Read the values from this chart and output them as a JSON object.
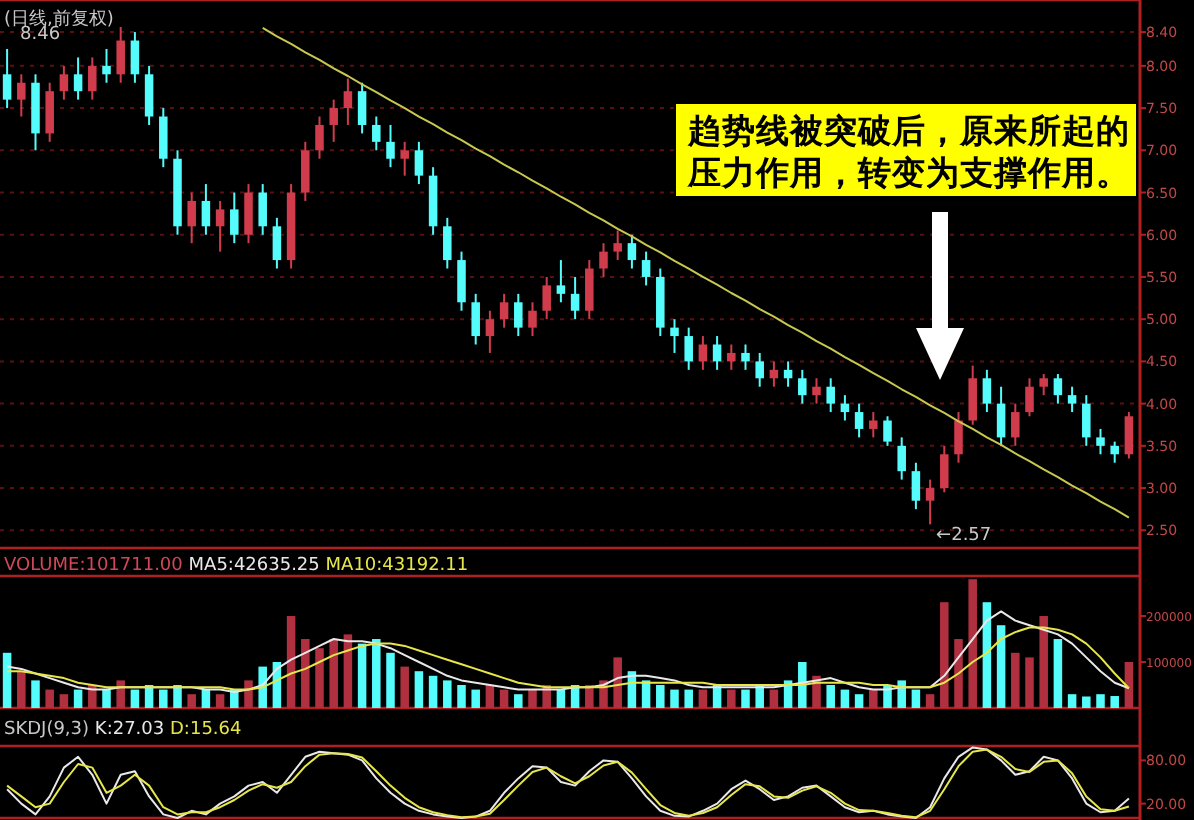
{
  "chart_data": [
    {
      "type": "candlestick",
      "title": "(日线,前复权)",
      "tick_labels": "y",
      "grid": "y",
      "categories": [
        null,
        null,
        null,
        null,
        null,
        null,
        null,
        null,
        null,
        null,
        null,
        null,
        null,
        null,
        null,
        null,
        null,
        null,
        null,
        null,
        null,
        null,
        null,
        null,
        null,
        null,
        null,
        null,
        null,
        null,
        null,
        null,
        null,
        null,
        null,
        null,
        null,
        null,
        null,
        null,
        null,
        null,
        null,
        null,
        null,
        null,
        null,
        null,
        null,
        null,
        null,
        null,
        null,
        null,
        null,
        null,
        null,
        null,
        null,
        null,
        null,
        null,
        null,
        null,
        null,
        null,
        null,
        null,
        null,
        null,
        null,
        null,
        null,
        null,
        null,
        null,
        null,
        null,
        null,
        null
      ],
      "ohlc": [
        [
          7.9,
          8.2,
          7.5,
          7.6
        ],
        [
          7.6,
          7.9,
          7.4,
          7.8
        ],
        [
          7.8,
          7.9,
          7.0,
          7.2
        ],
        [
          7.2,
          7.8,
          7.1,
          7.7
        ],
        [
          7.7,
          8.0,
          7.6,
          7.9
        ],
        [
          7.9,
          8.1,
          7.6,
          7.7
        ],
        [
          7.7,
          8.1,
          7.6,
          8.0
        ],
        [
          8.0,
          8.2,
          7.8,
          7.9
        ],
        [
          7.9,
          8.46,
          7.8,
          8.3
        ],
        [
          8.3,
          8.4,
          7.8,
          7.9
        ],
        [
          7.9,
          8.0,
          7.3,
          7.4
        ],
        [
          7.4,
          7.5,
          6.8,
          6.9
        ],
        [
          6.9,
          7.0,
          6.0,
          6.1
        ],
        [
          6.1,
          6.5,
          5.9,
          6.4
        ],
        [
          6.4,
          6.6,
          6.0,
          6.1
        ],
        [
          6.1,
          6.4,
          5.8,
          6.3
        ],
        [
          6.3,
          6.5,
          5.9,
          6.0
        ],
        [
          6.0,
          6.6,
          5.9,
          6.5
        ],
        [
          6.5,
          6.6,
          6.0,
          6.1
        ],
        [
          6.1,
          6.2,
          5.6,
          5.7
        ],
        [
          5.7,
          6.6,
          5.6,
          6.5
        ],
        [
          6.5,
          7.1,
          6.4,
          7.0
        ],
        [
          7.0,
          7.4,
          6.9,
          7.3
        ],
        [
          7.3,
          7.6,
          7.1,
          7.5
        ],
        [
          7.5,
          7.85,
          7.3,
          7.7
        ],
        [
          7.7,
          7.8,
          7.2,
          7.3
        ],
        [
          7.3,
          7.4,
          7.0,
          7.1
        ],
        [
          7.1,
          7.3,
          6.8,
          6.9
        ],
        [
          6.9,
          7.1,
          6.7,
          7.0
        ],
        [
          7.0,
          7.1,
          6.6,
          6.7
        ],
        [
          6.7,
          6.8,
          6.0,
          6.1
        ],
        [
          6.1,
          6.2,
          5.6,
          5.7
        ],
        [
          5.7,
          5.8,
          5.1,
          5.2
        ],
        [
          5.2,
          5.3,
          4.7,
          4.8
        ],
        [
          4.8,
          5.1,
          4.6,
          5.0
        ],
        [
          5.0,
          5.3,
          4.9,
          5.2
        ],
        [
          5.2,
          5.3,
          4.8,
          4.9
        ],
        [
          4.9,
          5.2,
          4.8,
          5.1
        ],
        [
          5.1,
          5.5,
          5.0,
          5.4
        ],
        [
          5.4,
          5.7,
          5.2,
          5.3
        ],
        [
          5.3,
          5.5,
          5.0,
          5.1
        ],
        [
          5.1,
          5.7,
          5.0,
          5.6
        ],
        [
          5.6,
          5.9,
          5.5,
          5.8
        ],
        [
          5.8,
          6.05,
          5.7,
          5.9
        ],
        [
          5.9,
          6.0,
          5.6,
          5.7
        ],
        [
          5.7,
          5.8,
          5.4,
          5.5
        ],
        [
          5.5,
          5.6,
          4.8,
          4.9
        ],
        [
          4.9,
          5.0,
          4.6,
          4.8
        ],
        [
          4.8,
          4.9,
          4.4,
          4.5
        ],
        [
          4.5,
          4.8,
          4.4,
          4.7
        ],
        [
          4.7,
          4.8,
          4.4,
          4.5
        ],
        [
          4.5,
          4.7,
          4.4,
          4.6
        ],
        [
          4.6,
          4.7,
          4.4,
          4.5
        ],
        [
          4.5,
          4.6,
          4.2,
          4.3
        ],
        [
          4.3,
          4.5,
          4.2,
          4.4
        ],
        [
          4.4,
          4.5,
          4.2,
          4.3
        ],
        [
          4.3,
          4.4,
          4.0,
          4.1
        ],
        [
          4.1,
          4.3,
          4.0,
          4.2
        ],
        [
          4.2,
          4.3,
          3.9,
          4.0
        ],
        [
          4.0,
          4.1,
          3.8,
          3.9
        ],
        [
          3.9,
          4.0,
          3.6,
          3.7
        ],
        [
          3.7,
          3.9,
          3.6,
          3.8
        ],
        [
          3.8,
          3.85,
          3.5,
          3.55
        ],
        [
          3.5,
          3.6,
          3.1,
          3.2
        ],
        [
          3.2,
          3.3,
          2.75,
          2.85
        ],
        [
          2.85,
          3.1,
          2.57,
          3.0
        ],
        [
          3.0,
          3.5,
          2.95,
          3.4
        ],
        [
          3.4,
          3.9,
          3.3,
          3.8
        ],
        [
          3.8,
          4.45,
          3.75,
          4.3
        ],
        [
          4.3,
          4.4,
          3.9,
          4.0
        ],
        [
          4.0,
          4.2,
          3.5,
          3.6
        ],
        [
          3.6,
          4.0,
          3.5,
          3.9
        ],
        [
          3.9,
          4.3,
          3.85,
          4.2
        ],
        [
          4.2,
          4.35,
          4.1,
          4.3
        ],
        [
          4.3,
          4.35,
          4.0,
          4.1
        ],
        [
          4.1,
          4.2,
          3.9,
          4.0
        ],
        [
          4.0,
          4.1,
          3.5,
          3.6
        ],
        [
          3.6,
          3.7,
          3.4,
          3.5
        ],
        [
          3.5,
          3.55,
          3.3,
          3.4
        ],
        [
          3.4,
          3.9,
          3.35,
          3.85
        ]
      ],
      "series": [
        {
          "type": "line",
          "color": "#c8c850",
          "values": [
            null,
            null,
            null,
            null,
            null,
            null,
            null,
            null,
            null,
            null,
            null,
            null,
            null,
            null,
            null,
            null,
            null,
            null,
            8.45,
            8.35,
            8.26,
            8.16,
            8.07,
            7.97,
            7.88,
            7.78,
            7.69,
            7.59,
            7.5,
            7.4,
            7.31,
            7.21,
            7.12,
            7.02,
            6.93,
            6.83,
            6.74,
            6.64,
            6.55,
            6.45,
            6.36,
            6.26,
            6.17,
            6.07,
            5.98,
            5.88,
            5.79,
            5.69,
            5.6,
            5.5,
            5.41,
            5.31,
            5.22,
            5.12,
            5.03,
            4.93,
            4.84,
            4.74,
            4.65,
            4.55,
            4.46,
            4.36,
            4.27,
            4.17,
            4.08,
            3.98,
            3.89,
            3.79,
            3.7,
            3.6,
            3.51,
            3.41,
            3.32,
            3.22,
            3.13,
            3.03,
            2.94,
            2.84,
            2.75,
            2.65
          ]
        }
      ],
      "ylim": [
        2.29,
        8.78
      ],
      "yticks": [
        {
          "value": 2.5,
          "label": "2.50"
        },
        {
          "value": 3,
          "label": "3.00"
        },
        {
          "value": 3.5,
          "label": "3.50"
        },
        {
          "value": 4,
          "label": "4.00"
        },
        {
          "value": 4.5,
          "label": "4.50"
        },
        {
          "value": 5,
          "label": "5.00"
        },
        {
          "value": 5.5,
          "label": "5.50"
        },
        {
          "value": 6,
          "label": "6.00"
        },
        {
          "value": 6.5,
          "label": "6.50"
        },
        {
          "value": 7,
          "label": "7.00"
        },
        {
          "value": 7.5,
          "label": "7.50"
        },
        {
          "value": 8,
          "label": "8.00"
        },
        {
          "value": 8.4,
          "label": "8.40"
        }
      ],
      "annotations": [
        "8.46",
        "←2.57",
        "趋势线被突破后，原来所起的压力作用，转变为支撑作用。"
      ]
    },
    {
      "type": "bar",
      "tick_labels": "y",
      "categories": [
        null,
        null,
        null,
        null,
        null,
        null,
        null,
        null,
        null,
        null,
        null,
        null,
        null,
        null,
        null,
        null,
        null,
        null,
        null,
        null,
        null,
        null,
        null,
        null,
        null,
        null,
        null,
        null,
        null,
        null,
        null,
        null,
        null,
        null,
        null,
        null,
        null,
        null,
        null,
        null,
        null,
        null,
        null,
        null,
        null,
        null,
        null,
        null,
        null,
        null,
        null,
        null,
        null,
        null,
        null,
        null,
        null,
        null,
        null,
        null,
        null,
        null,
        null,
        null,
        null,
        null,
        null,
        null,
        null,
        null,
        null,
        null,
        null,
        null,
        null,
        null,
        null,
        null,
        null,
        null
      ],
      "ylim": [
        0,
        287000
      ],
      "yticks": [
        100000,
        200000
      ],
      "series": [
        {
          "name": "VOLUME:101711.00",
          "color": "#d04858",
          "colors": [
            "#54fcfc",
            "#b03040",
            "#54fcfc",
            "#b03040",
            "#b03040",
            "#54fcfc",
            "#b03040",
            "#54fcfc",
            "#b03040",
            "#54fcfc",
            "#54fcfc",
            "#54fcfc",
            "#54fcfc",
            "#b03040",
            "#54fcfc",
            "#b03040",
            "#54fcfc",
            "#b03040",
            "#54fcfc",
            "#54fcfc",
            "#b03040",
            "#b03040",
            "#b03040",
            "#b03040",
            "#b03040",
            "#54fcfc",
            "#54fcfc",
            "#54fcfc",
            "#b03040",
            "#54fcfc",
            "#54fcfc",
            "#54fcfc",
            "#54fcfc",
            "#54fcfc",
            "#b03040",
            "#b03040",
            "#54fcfc",
            "#b03040",
            "#b03040",
            "#54fcfc",
            "#54fcfc",
            "#b03040",
            "#b03040",
            "#b03040",
            "#54fcfc",
            "#54fcfc",
            "#54fcfc",
            "#54fcfc",
            "#54fcfc",
            "#b03040",
            "#54fcfc",
            "#b03040",
            "#54fcfc",
            "#54fcfc",
            "#b03040",
            "#54fcfc",
            "#54fcfc",
            "#b03040",
            "#54fcfc",
            "#54fcfc",
            "#54fcfc",
            "#b03040",
            "#54fcfc",
            "#54fcfc",
            "#54fcfc",
            "#b03040",
            "#b03040",
            "#b03040",
            "#b03040",
            "#54fcfc",
            "#54fcfc",
            "#b03040",
            "#b03040",
            "#b03040",
            "#54fcfc",
            "#54fcfc",
            "#54fcfc",
            "#54fcfc",
            "#54fcfc",
            "#b03040"
          ],
          "values": [
            120000,
            80000,
            60000,
            40000,
            30000,
            40000,
            50000,
            40000,
            60000,
            40000,
            50000,
            40000,
            50000,
            30000,
            40000,
            30000,
            40000,
            60000,
            90000,
            100000,
            200000,
            150000,
            130000,
            150000,
            160000,
            140000,
            150000,
            120000,
            90000,
            80000,
            70000,
            60000,
            50000,
            40000,
            50000,
            40000,
            30000,
            40000,
            50000,
            40000,
            50000,
            50000,
            60000,
            110000,
            80000,
            60000,
            50000,
            40000,
            40000,
            40000,
            50000,
            40000,
            40000,
            50000,
            40000,
            60000,
            100000,
            70000,
            50000,
            40000,
            30000,
            40000,
            50000,
            60000,
            40000,
            30000,
            230000,
            150000,
            280000,
            230000,
            180000,
            120000,
            110000,
            200000,
            150000,
            30000,
            25000,
            30000,
            26000,
            100000
          ]
        },
        {
          "name": "MA5:42635.25",
          "type": "line",
          "color": "#e8e8e8",
          "values": [
            90000,
            85000,
            75000,
            65000,
            55000,
            45000,
            40000,
            40000,
            45000,
            45000,
            45000,
            45000,
            45000,
            45000,
            40000,
            40000,
            35000,
            40000,
            50000,
            85000,
            105000,
            120000,
            135000,
            150000,
            145000,
            145000,
            140000,
            130000,
            115000,
            100000,
            85000,
            70000,
            60000,
            55000,
            50000,
            45000,
            40000,
            40000,
            40000,
            40000,
            45000,
            45000,
            50000,
            65000,
            70000,
            70000,
            65000,
            60000,
            50000,
            45000,
            45000,
            45000,
            45000,
            45000,
            45000,
            50000,
            55000,
            60000,
            65000,
            55000,
            45000,
            40000,
            40000,
            45000,
            45000,
            45000,
            70000,
            110000,
            150000,
            190000,
            210000,
            190000,
            180000,
            170000,
            160000,
            140000,
            110000,
            80000,
            55000,
            43000
          ]
        },
        {
          "name": "MA10:43192.11",
          "type": "line",
          "color": "#e6e64b",
          "values": [
            80000,
            80000,
            75000,
            70000,
            65000,
            55000,
            50000,
            45000,
            45000,
            45000,
            45000,
            45000,
            45000,
            45000,
            45000,
            45000,
            40000,
            40000,
            45000,
            60000,
            75000,
            85000,
            100000,
            115000,
            125000,
            135000,
            140000,
            140000,
            135000,
            125000,
            115000,
            105000,
            95000,
            85000,
            75000,
            65000,
            55000,
            50000,
            45000,
            45000,
            45000,
            45000,
            45000,
            50000,
            55000,
            55000,
            55000,
            55000,
            55000,
            55000,
            50000,
            50000,
            50000,
            50000,
            50000,
            50000,
            50000,
            55000,
            55000,
            55000,
            55000,
            50000,
            50000,
            45000,
            45000,
            45000,
            55000,
            75000,
            100000,
            120000,
            150000,
            165000,
            175000,
            175000,
            170000,
            160000,
            140000,
            110000,
            75000,
            43000
          ]
        }
      ]
    },
    {
      "type": "line",
      "title": "SKDJ(9,3)",
      "tick_labels": "y",
      "categories": [
        null,
        null,
        null,
        null,
        null,
        null,
        null,
        null,
        null,
        null,
        null,
        null,
        null,
        null,
        null,
        null,
        null,
        null,
        null,
        null,
        null,
        null,
        null,
        null,
        null,
        null,
        null,
        null,
        null,
        null,
        null,
        null,
        null,
        null,
        null,
        null,
        null,
        null,
        null,
        null,
        null,
        null,
        null,
        null,
        null,
        null,
        null,
        null,
        null,
        null,
        null,
        null,
        null,
        null,
        null,
        null,
        null,
        null,
        null,
        null,
        null,
        null,
        null,
        null,
        null,
        null,
        null,
        null,
        null,
        null,
        null,
        null,
        null,
        null,
        null,
        null,
        null,
        null,
        null,
        null
      ],
      "ylim": [
        0,
        100
      ],
      "yticks": [
        {
          "value": 20,
          "label": "20.00"
        },
        {
          "value": 80,
          "label": "80.00"
        }
      ],
      "series": [
        {
          "name": "K:27.03",
          "color": "#e8e8e8",
          "values": [
            40,
            20,
            5,
            30,
            70,
            85,
            60,
            20,
            60,
            65,
            30,
            5,
            0,
            10,
            5,
            20,
            30,
            45,
            50,
            35,
            60,
            85,
            92,
            90,
            88,
            80,
            55,
            35,
            20,
            10,
            5,
            2,
            0,
            2,
            10,
            35,
            55,
            72,
            70,
            50,
            45,
            65,
            80,
            78,
            55,
            30,
            10,
            3,
            2,
            10,
            20,
            40,
            52,
            40,
            25,
            30,
            42,
            45,
            30,
            15,
            8,
            10,
            5,
            2,
            0,
            15,
            55,
            85,
            98,
            95,
            80,
            60,
            65,
            85,
            80,
            55,
            20,
            8,
            10,
            27
          ]
        },
        {
          "name": "D:15.64",
          "color": "#e6e64b",
          "values": [
            45,
            30,
            15,
            20,
            50,
            75,
            70,
            35,
            45,
            60,
            45,
            15,
            5,
            8,
            8,
            15,
            25,
            38,
            47,
            42,
            50,
            72,
            88,
            90,
            89,
            84,
            65,
            45,
            28,
            15,
            8,
            4,
            1,
            2,
            6,
            25,
            45,
            64,
            70,
            58,
            48,
            58,
            73,
            78,
            63,
            40,
            18,
            7,
            3,
            7,
            15,
            32,
            47,
            44,
            30,
            28,
            38,
            44,
            35,
            20,
            11,
            10,
            7,
            3,
            1,
            10,
            40,
            72,
            92,
            95,
            85,
            68,
            64,
            78,
            80,
            62,
            30,
            12,
            10,
            16
          ]
        }
      ]
    }
  ]
}
